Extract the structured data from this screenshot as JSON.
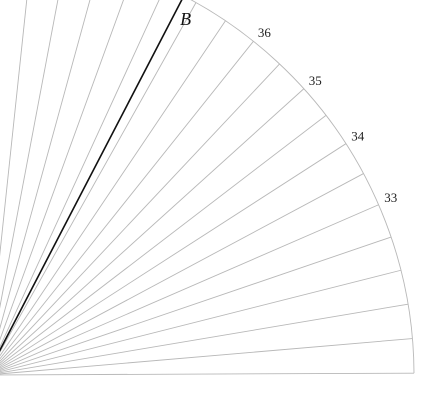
{
  "protractor": {
    "tick_labels": [
      {
        "degrees": 33,
        "text": "33"
      },
      {
        "degrees": 34,
        "text": "34"
      },
      {
        "degrees": 35,
        "text": "35"
      },
      {
        "degrees": 36,
        "text": "36"
      }
    ]
  },
  "ray": {
    "label": "B",
    "degrees": 37.2
  },
  "colors": {
    "grid": "#b8b8b8",
    "ray": "#111111",
    "text": "#222222"
  }
}
